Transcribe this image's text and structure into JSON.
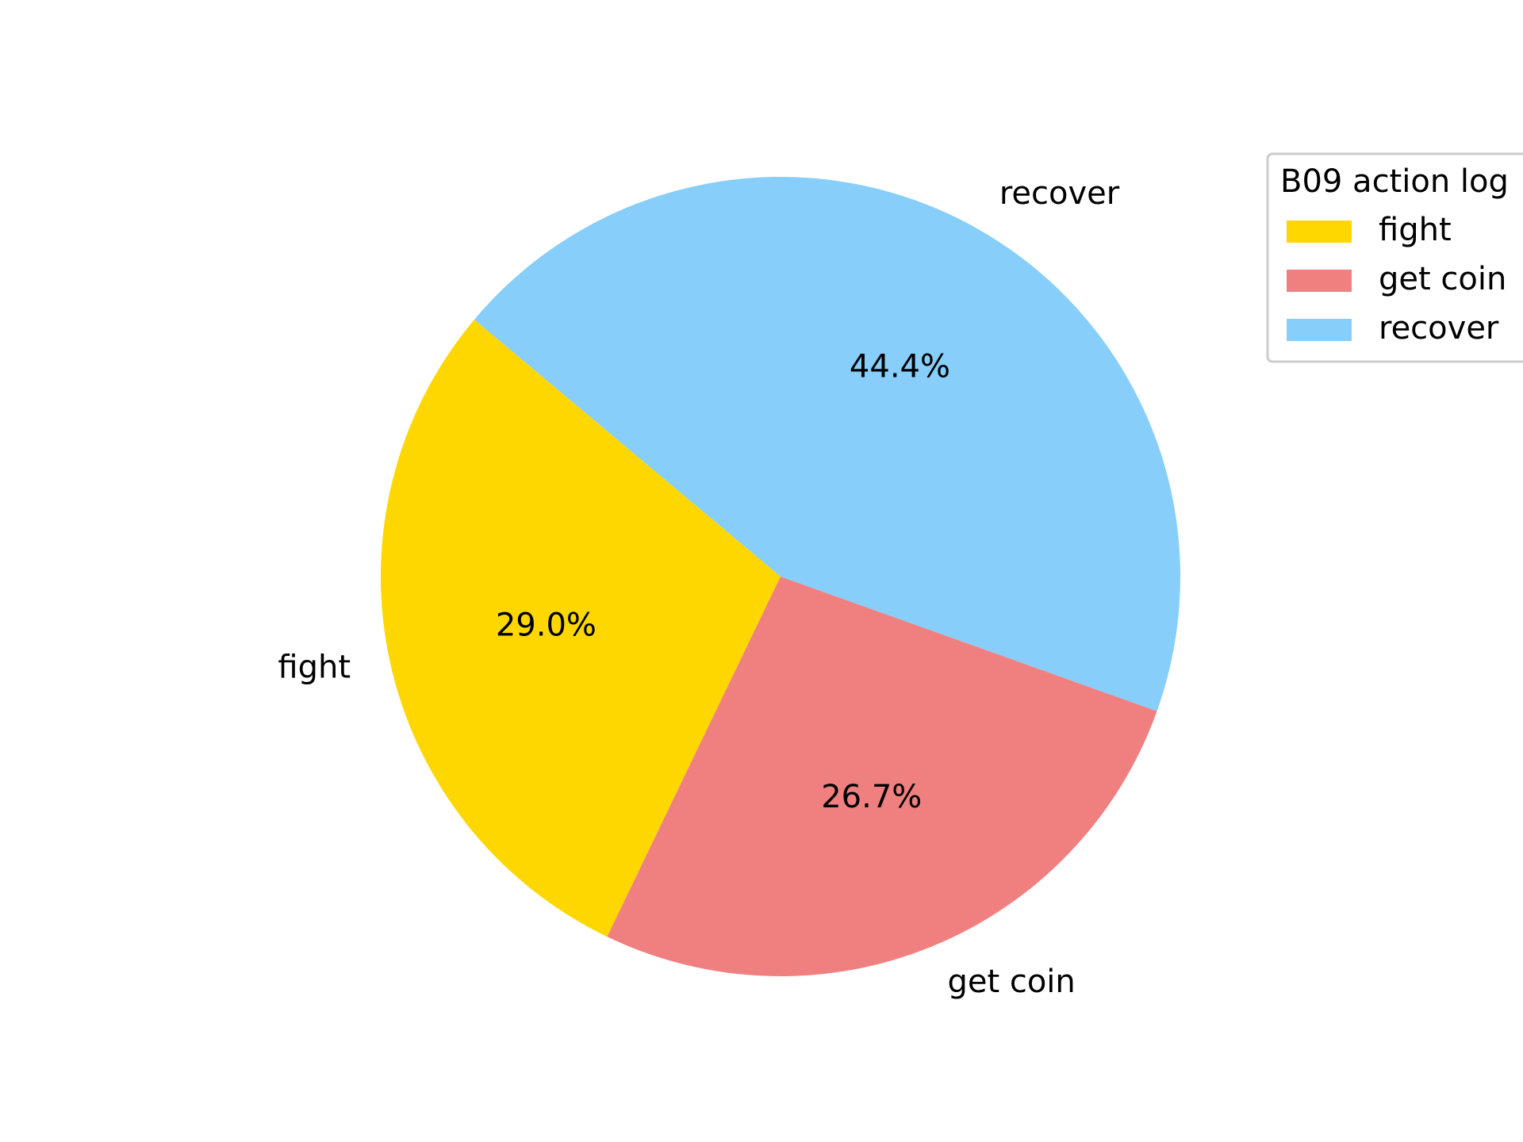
{
  "chart_data": {
    "type": "pie",
    "categories": [
      "fight",
      "get coin",
      "recover"
    ],
    "values": [
      29.0,
      26.7,
      44.4
    ],
    "value_labels": [
      "29.0%",
      "26.7%",
      "44.4%"
    ],
    "colors": [
      "#FFD700",
      "#F08080",
      "#87CEFA"
    ],
    "legend": {
      "title": "B09 action log",
      "placement": "top-right",
      "entries": [
        "fight",
        "get coin",
        "recover"
      ]
    }
  }
}
